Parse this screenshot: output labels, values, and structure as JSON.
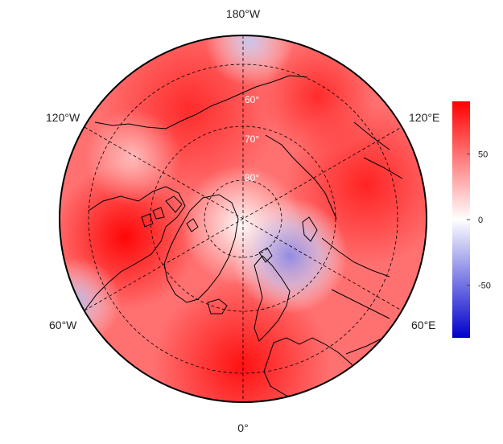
{
  "map": {
    "projection": "north-polar-stereographic",
    "center_latitude": 90,
    "longitude_labels": {
      "top": "180°W",
      "upper_left": "120°W",
      "upper_right": "120°E",
      "lower_left": "60°W",
      "lower_right": "60°E",
      "bottom": "0°"
    },
    "latitude_labels": [
      "60°",
      "70°",
      "80°"
    ],
    "graticule_style": "dashed",
    "field": {
      "description": "gridded anomaly field",
      "anomaly_centers": [
        {
          "name": "north-america-high",
          "value": 85
        },
        {
          "name": "siberia-high",
          "value": 60
        },
        {
          "name": "europe-high",
          "value": 70
        },
        {
          "name": "barents-low",
          "value": -30
        },
        {
          "name": "pacific-low",
          "value": -15
        },
        {
          "name": "atlantic-low",
          "value": -25
        }
      ]
    }
  },
  "colorbar": {
    "min": -90,
    "max": 90,
    "ticks": [
      {
        "value": 50,
        "label": "50"
      },
      {
        "value": 0,
        "label": "0"
      },
      {
        "value": -50,
        "label": "-50"
      }
    ],
    "colors": {
      "max": "#ff0000",
      "mid": "#ffffff",
      "min": "#0000cc"
    }
  }
}
